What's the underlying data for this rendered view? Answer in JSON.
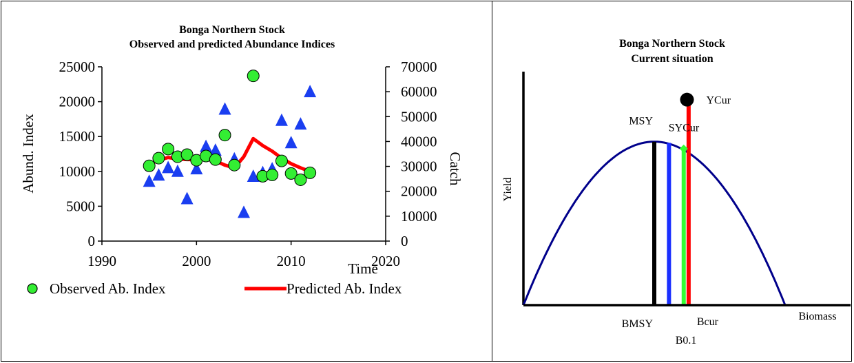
{
  "chart_data": [
    {
      "type": "scatter",
      "title": "Bonga Northern Stock",
      "subtitle": "Observed and predicted Abundance Indices",
      "xlabel": "Time",
      "ylabel": "Abund. Index",
      "y2label": "Catch",
      "xlim": [
        1990,
        2020
      ],
      "ylim": [
        0,
        25000
      ],
      "y2lim": [
        0,
        70000
      ],
      "xticks": [
        1990,
        2000,
        2010,
        2020
      ],
      "yticks": [
        0,
        5000,
        10000,
        15000,
        20000,
        25000
      ],
      "y2ticks": [
        0,
        10000,
        20000,
        30000,
        40000,
        50000,
        60000,
        70000
      ],
      "grid": false,
      "legend_position": "bottom",
      "series": [
        {
          "name": "Observed Ab. Index",
          "type": "scatter",
          "marker": "circle",
          "color": "#33ee33",
          "axis": "left",
          "x": [
            1995,
            1996,
            1997,
            1998,
            1999,
            2000,
            2001,
            2002,
            2003,
            2004,
            2006,
            2007,
            2008,
            2009,
            2010,
            2011,
            2012
          ],
          "y": [
            10800,
            11900,
            13200,
            12100,
            12400,
            11600,
            12200,
            11700,
            15200,
            10900,
            23700,
            9300,
            9500,
            11500,
            9700,
            8800,
            9800
          ]
        },
        {
          "name": "Predicted Ab. Index",
          "type": "line",
          "color": "#ff0000",
          "axis": "left",
          "x": [
            1995,
            1996,
            1997,
            1998,
            1999,
            2000,
            2001,
            2002,
            2003,
            2004,
            2005,
            2006,
            2007,
            2008,
            2009,
            2010,
            2011,
            2012
          ],
          "y": [
            11000,
            11600,
            12000,
            11800,
            11700,
            11700,
            11800,
            11500,
            10900,
            10500,
            12100,
            14700,
            13700,
            12900,
            11900,
            11100,
            10500,
            10000
          ]
        },
        {
          "type": "scatter",
          "marker": "triangle",
          "color": "#1a3ef0",
          "axis": "right",
          "x": [
            1995,
            1996,
            1997,
            1998,
            1999,
            2000,
            2001,
            2002,
            2003,
            2004,
            2005,
            2006,
            2007,
            2008,
            2009,
            2010,
            2011,
            2012
          ],
          "y": [
            24000,
            26500,
            29500,
            28000,
            17000,
            29000,
            38000,
            36500,
            53000,
            33000,
            11500,
            26000,
            27500,
            29000,
            48500,
            39500,
            47000,
            60000
          ]
        }
      ]
    },
    {
      "type": "line",
      "title": "Bonga Northern Stock",
      "subtitle": "Current situation",
      "xlabel": "Biomass",
      "ylabel": "Yield",
      "xlim": [
        0,
        1
      ],
      "ylim": [
        0,
        1
      ],
      "curve": {
        "name": "production-curve",
        "color": "#00008b",
        "x_zero_end": 0.8,
        "y_max": 0.7
      },
      "reference_lines": [
        {
          "label": "BMSY",
          "x": 0.4,
          "y": 0.7,
          "color": "#000000"
        },
        {
          "label": "",
          "x": 0.445,
          "y": 0.695,
          "color": "#1a2fff"
        },
        {
          "label": "B0.1",
          "x": 0.49,
          "y": 0.67,
          "color": "#33ff33"
        },
        {
          "label": "Bcur",
          "x": 0.505,
          "y": 0.88,
          "color": "#ff0000"
        }
      ],
      "points": [
        {
          "label": "YCur",
          "x": 0.5,
          "y": 0.88,
          "color": "#000000",
          "marker": "circle"
        },
        {
          "label": "SYCur",
          "x": 0.49,
          "y": 0.67,
          "color": "#33ff33",
          "marker": "diamond"
        }
      ],
      "annotations": [
        {
          "label": "MSY",
          "x": 0.4,
          "y": 0.7
        }
      ]
    }
  ]
}
